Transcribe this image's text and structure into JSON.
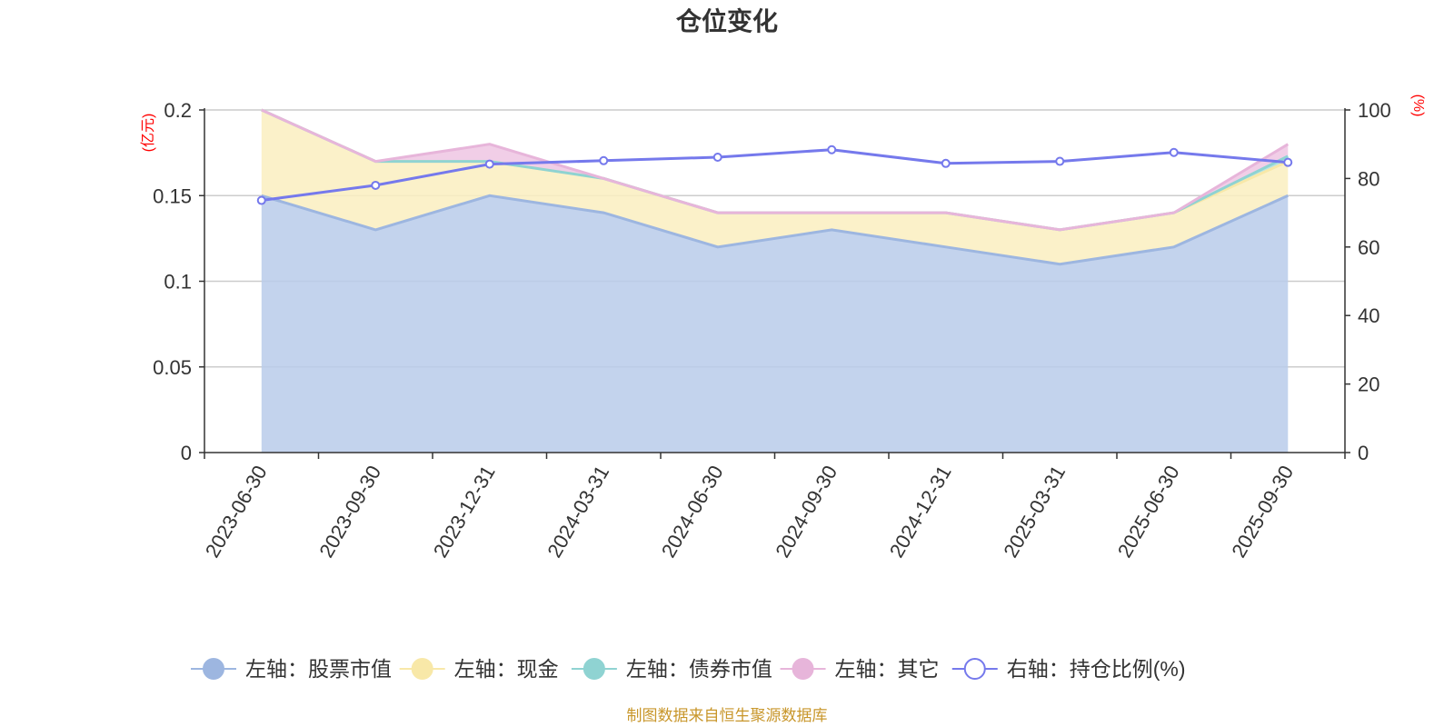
{
  "chart_data": {
    "type": "area",
    "title": "仓位变化",
    "categories": [
      "2023-06-30",
      "2023-09-30",
      "2023-12-31",
      "2024-03-31",
      "2024-06-30",
      "2024-09-30",
      "2024-12-31",
      "2025-03-31",
      "2025-06-30",
      "2025-09-30"
    ],
    "left_axis": {
      "unit": "(亿元)",
      "ylim": [
        0,
        0.2
      ],
      "ticks": [
        "0",
        "0.05",
        "0.1",
        "0.15",
        "0.2"
      ]
    },
    "right_axis": {
      "unit": "(%)",
      "ylim": [
        0,
        100
      ],
      "ticks": [
        "0",
        "20",
        "40",
        "60",
        "80",
        "100"
      ]
    },
    "stacked_series": [
      {
        "name": "左轴：股票市值",
        "color": "#9db6e0",
        "fill": "#b8cbea",
        "values": [
          0.15,
          0.13,
          0.15,
          0.14,
          0.12,
          0.13,
          0.12,
          0.11,
          0.12,
          0.15
        ]
      },
      {
        "name": "左轴：现金",
        "color": "#f8e8a8",
        "fill": "#faefc0",
        "values": [
          0.05,
          0.04,
          0.02,
          0.02,
          0.02,
          0.01,
          0.02,
          0.02,
          0.02,
          0.02
        ]
      },
      {
        "name": "左轴：债券市值",
        "color": "#8fd3d2",
        "fill": "#a9e0df",
        "values": [
          0,
          0,
          0,
          0,
          0,
          0,
          0,
          0,
          0,
          0.003
        ]
      },
      {
        "name": "左轴：其它",
        "color": "#e7b5da",
        "fill": "#eec6e3",
        "values": [
          0,
          0,
          0.01,
          0,
          0,
          0,
          0,
          0,
          0,
          0.007
        ]
      }
    ],
    "line_series": {
      "name": "右轴：持仓比例(%)",
      "color": "#7579ec",
      "values": [
        73.6,
        78.0,
        84.2,
        85.2,
        86.2,
        88.4,
        84.4,
        85.0,
        87.6,
        84.7
      ]
    },
    "grid": true,
    "legend_position": "bottom"
  },
  "footer": {
    "source": "制图数据来自恒生聚源数据库"
  }
}
